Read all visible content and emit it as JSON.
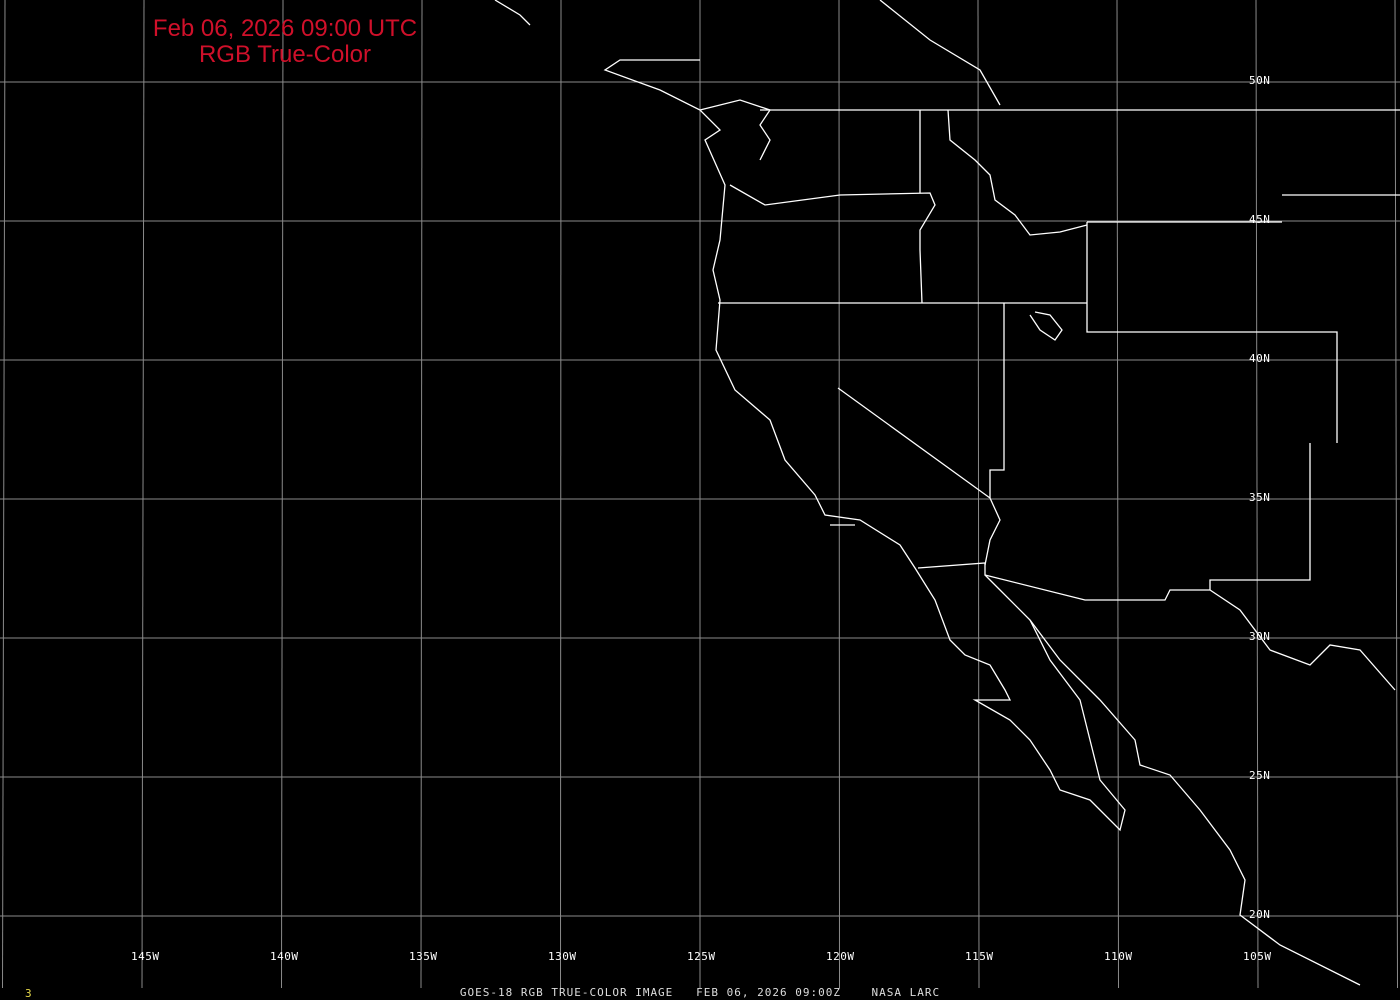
{
  "title": {
    "line1": "Feb 06, 2026 09:00 UTC",
    "line2": "RGB True-Color"
  },
  "footer": "GOES-18 RGB TRUE-COLOR IMAGE   FEB 06, 2026 09:00Z    NASA LARC",
  "frame_number": "3",
  "longitude_labels": [
    "145W",
    "140W",
    "135W",
    "130W",
    "125W",
    "120W",
    "115W",
    "110W",
    "105W"
  ],
  "latitude_labels": [
    "50N",
    "45N",
    "40N",
    "35N",
    "30N",
    "25N",
    "20N"
  ],
  "colors": {
    "title": "#d0102a",
    "grid": "#8a8a8a",
    "borders": "#ffffff",
    "background": "#000000",
    "frame_number": "#e6d84a"
  }
}
